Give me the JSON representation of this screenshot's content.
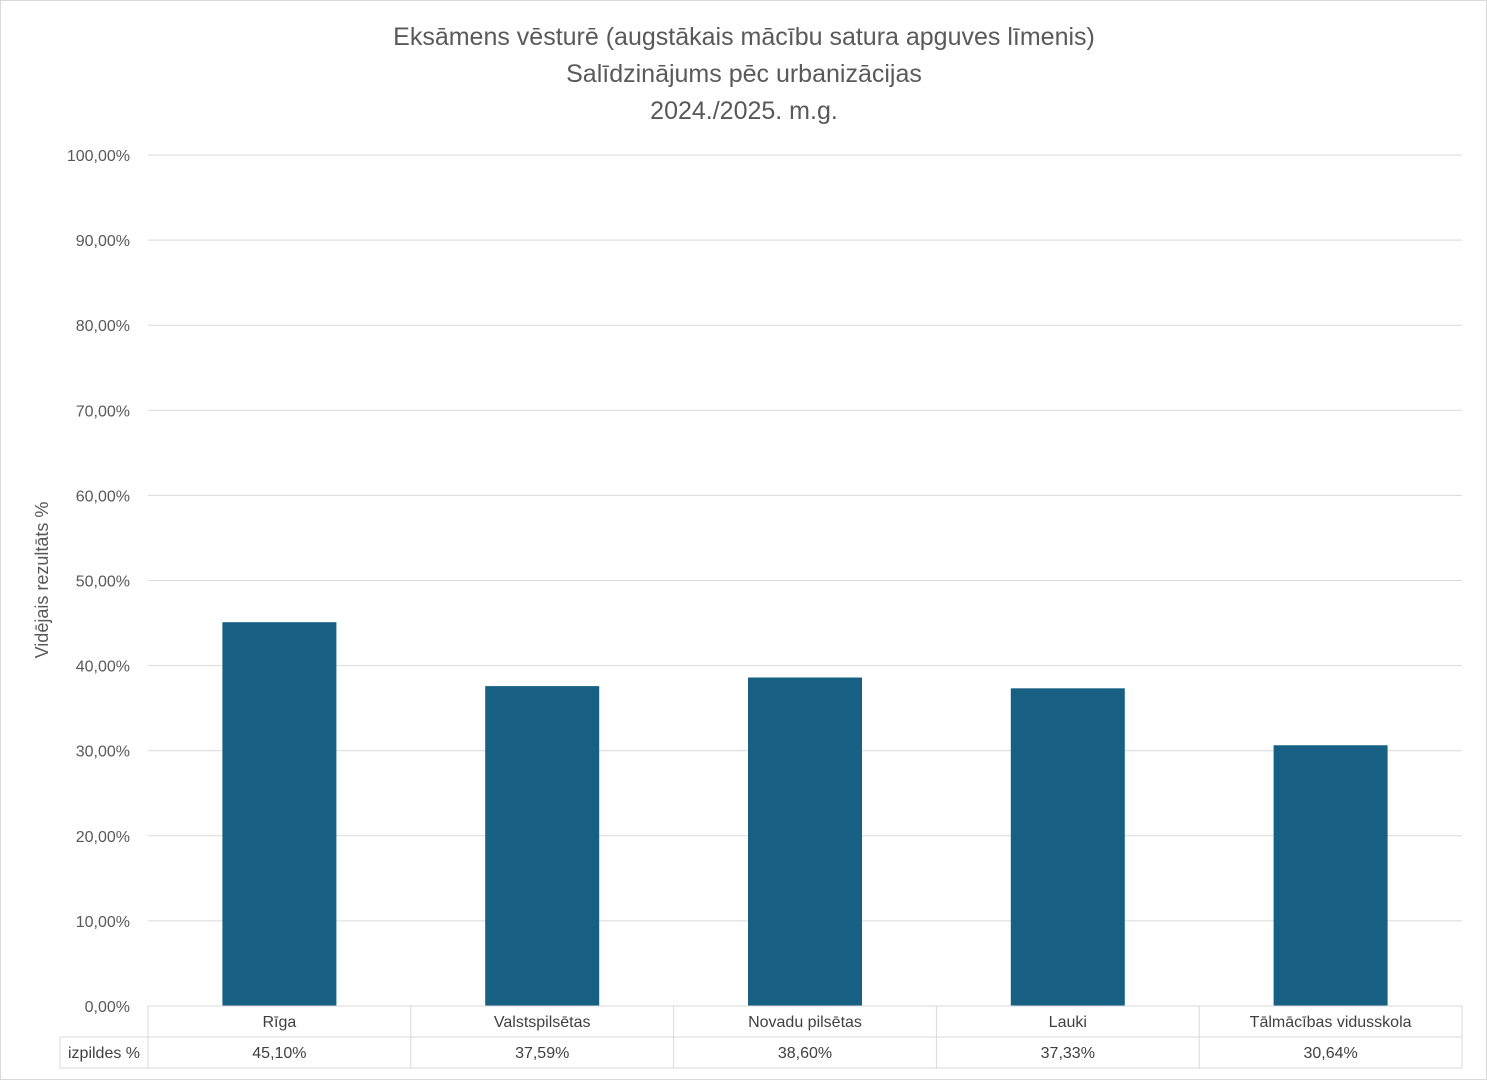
{
  "chart_data": {
    "type": "bar",
    "title_lines": [
      "Eksāmens vēsturē (augstākais mācību satura apguves līmenis)",
      "Salīdzinājums pēc urbanizācijas",
      "2024./2025. m.g."
    ],
    "xlabel": "",
    "ylabel": "Vidējais rezultāts %",
    "ylim": [
      0,
      100
    ],
    "yticks": [
      "0,00%",
      "10,00%",
      "20,00%",
      "30,00%",
      "40,00%",
      "50,00%",
      "60,00%",
      "70,00%",
      "80,00%",
      "90,00%",
      "100,00%"
    ],
    "grid": true,
    "categories": [
      "Rīga",
      "Valstspilsētas",
      "Novadu pilsētas",
      "Lauki",
      "Tālmācības vidusskola"
    ],
    "series": [
      {
        "name": "izpildes %",
        "values": [
          45.1,
          37.59,
          38.6,
          37.33,
          30.64
        ],
        "labels": [
          "45,10%",
          "37,59%",
          "38,60%",
          "37,33%",
          "30,64%"
        ]
      }
    ],
    "data_table": true,
    "colors": {
      "bar": "#176083",
      "grid": "#d9d9d9",
      "text": "#595959"
    }
  }
}
